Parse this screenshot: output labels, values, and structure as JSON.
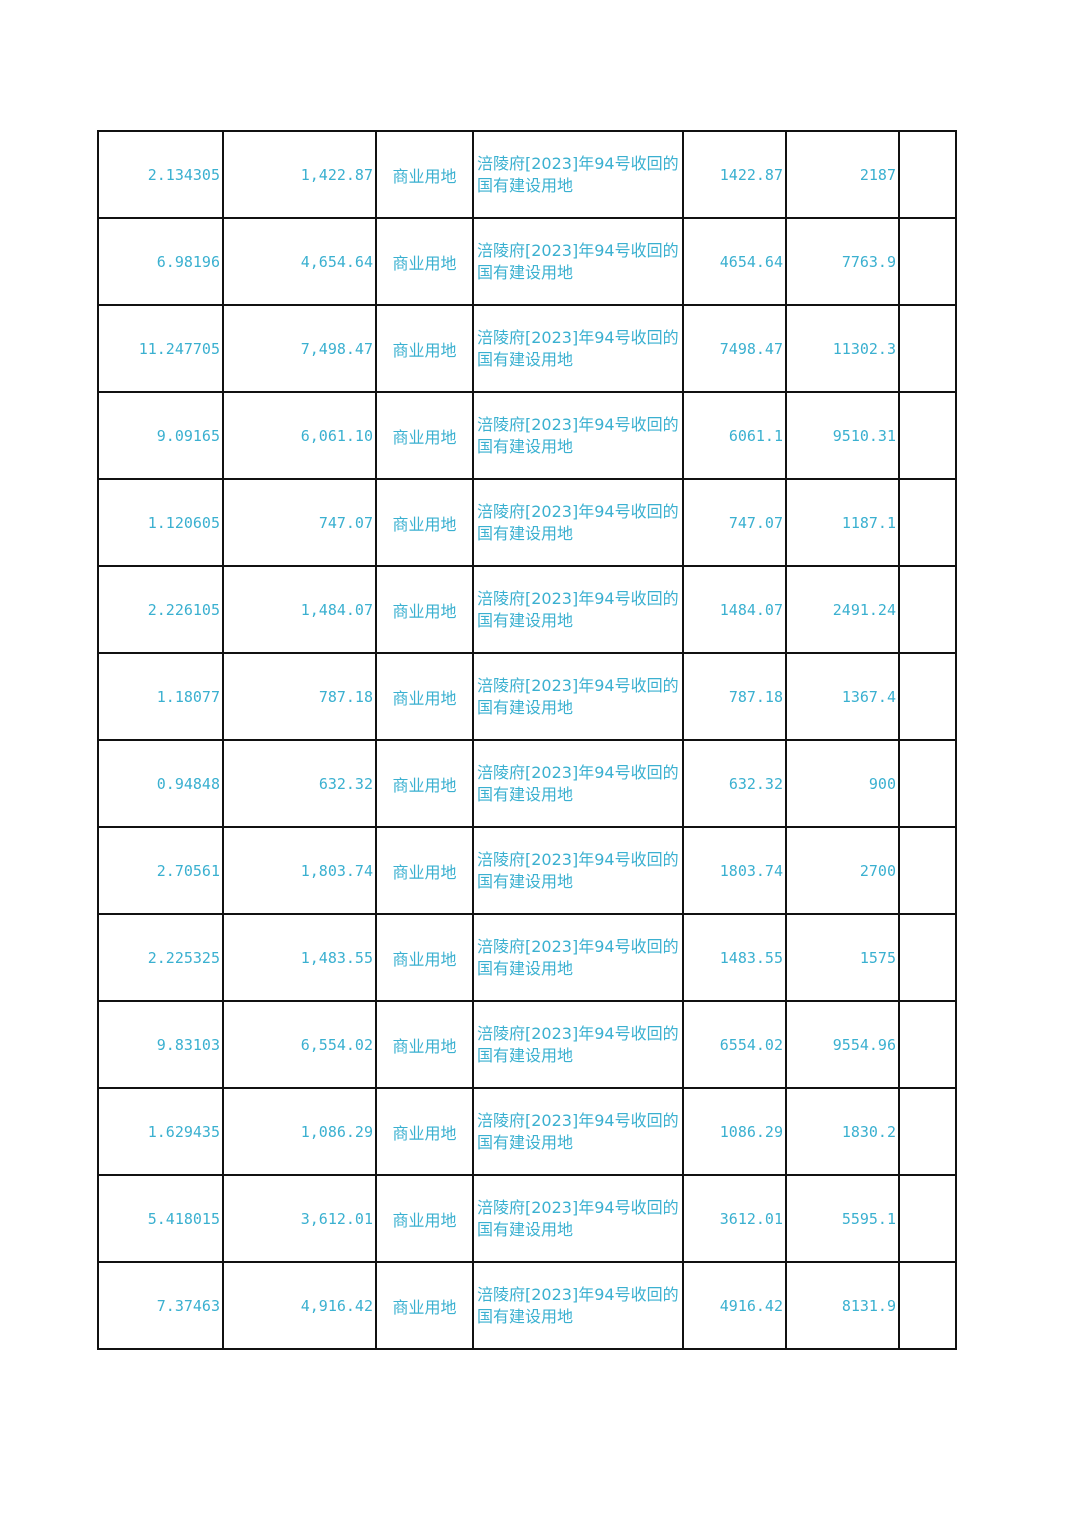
{
  "text_color": "#3ab0d0",
  "rows": [
    [
      "2.134305",
      "1,422.87",
      "商业用地",
      "涪陵府[2023]年94号收回的国有建设用地",
      "1422.87",
      "2187",
      ""
    ],
    [
      "6.98196",
      "4,654.64",
      "商业用地",
      "涪陵府[2023]年94号收回的国有建设用地",
      "4654.64",
      "7763.9",
      ""
    ],
    [
      "11.247705",
      "7,498.47",
      "商业用地",
      "涪陵府[2023]年94号收回的国有建设用地",
      "7498.47",
      "11302.3",
      ""
    ],
    [
      "9.09165",
      "6,061.10",
      "商业用地",
      "涪陵府[2023]年94号收回的国有建设用地",
      "6061.1",
      "9510.31",
      ""
    ],
    [
      "1.120605",
      "747.07",
      "商业用地",
      "涪陵府[2023]年94号收回的国有建设用地",
      "747.07",
      "1187.1",
      ""
    ],
    [
      "2.226105",
      "1,484.07",
      "商业用地",
      "涪陵府[2023]年94号收回的国有建设用地",
      "1484.07",
      "2491.24",
      ""
    ],
    [
      "1.18077",
      "787.18",
      "商业用地",
      "涪陵府[2023]年94号收回的国有建设用地",
      "787.18",
      "1367.4",
      ""
    ],
    [
      "0.94848",
      "632.32",
      "商业用地",
      "涪陵府[2023]年94号收回的国有建设用地",
      "632.32",
      "900",
      ""
    ],
    [
      "2.70561",
      "1,803.74",
      "商业用地",
      "涪陵府[2023]年94号收回的国有建设用地",
      "1803.74",
      "2700",
      ""
    ],
    [
      "2.225325",
      "1,483.55",
      "商业用地",
      "涪陵府[2023]年94号收回的国有建设用地",
      "1483.55",
      "1575",
      ""
    ],
    [
      "9.83103",
      "6,554.02",
      "商业用地",
      "涪陵府[2023]年94号收回的国有建设用地",
      "6554.02",
      "9554.96",
      ""
    ],
    [
      "1.629435",
      "1,086.29",
      "商业用地",
      "涪陵府[2023]年94号收回的国有建设用地",
      "1086.29",
      "1830.2",
      ""
    ],
    [
      "5.418015",
      "3,612.01",
      "商业用地",
      "涪陵府[2023]年94号收回的国有建设用地",
      "3612.01",
      "5595.1",
      ""
    ],
    [
      "7.37463",
      "4,916.42",
      "商业用地",
      "涪陵府[2023]年94号收回的国有建设用地",
      "4916.42",
      "8131.9",
      ""
    ]
  ]
}
